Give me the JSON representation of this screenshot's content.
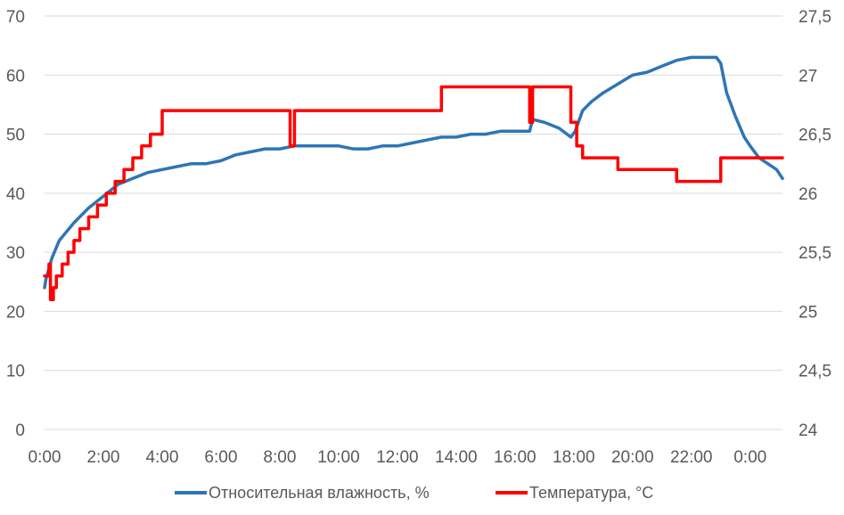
{
  "chart_data": {
    "type": "line",
    "title": "",
    "xlabel": "",
    "ylabel": "",
    "y2label": "",
    "grid": true,
    "legend_position": "bottom",
    "x_ticks": [
      "0:00",
      "2:00",
      "4:00",
      "6:00",
      "8:00",
      "10:00",
      "12:00",
      "14:00",
      "16:00",
      "18:00",
      "20:00",
      "22:00",
      "0:00"
    ],
    "ylim": [
      0,
      70
    ],
    "y_ticks": [
      "0",
      "10",
      "20",
      "30",
      "40",
      "50",
      "60",
      "70"
    ],
    "y2lim": [
      24,
      27.5
    ],
    "y2_ticks": [
      "24",
      "24,5",
      "25",
      "25,5",
      "26",
      "26,5",
      "27",
      "27,5"
    ],
    "series": [
      {
        "name": "Относительная влажность, %",
        "axis": "left",
        "color": "#2e75b6",
        "x_hours": [
          0,
          0.05,
          0.25,
          0.5,
          1,
          1.5,
          2,
          2.5,
          3,
          3.5,
          4,
          4.5,
          5,
          5.5,
          6,
          6.5,
          7,
          7.5,
          8,
          8.5,
          9,
          9.5,
          10,
          10.5,
          11,
          11.5,
          12,
          12.5,
          13,
          13.5,
          14,
          14.5,
          15,
          15.5,
          16,
          16.5,
          16.6,
          17,
          17.5,
          17.9,
          18.05,
          18.3,
          18.6,
          19,
          19.5,
          20,
          20.5,
          21,
          21.5,
          22,
          22.5,
          22.85,
          23.0,
          23.2,
          23.5,
          23.8,
          24.0,
          24.3,
          24.6,
          24.9,
          25.1
        ],
        "values": [
          24,
          25.5,
          29,
          32,
          35,
          37.5,
          39.5,
          41.5,
          42.5,
          43.5,
          44,
          44.5,
          45,
          45,
          45.5,
          46.5,
          47,
          47.5,
          47.5,
          48,
          48,
          48,
          48,
          47.5,
          47.5,
          48,
          48,
          48.5,
          49,
          49.5,
          49.5,
          50,
          50,
          50.5,
          50.5,
          50.5,
          52.5,
          52,
          51,
          49.5,
          50.5,
          54,
          55.5,
          57,
          58.5,
          60,
          60.5,
          61.5,
          62.5,
          63,
          63,
          63,
          62,
          57,
          53,
          49.5,
          48,
          46,
          45,
          44,
          42.5
        ]
      },
      {
        "name": "Температура, °С",
        "axis": "right",
        "color": "#ff0000",
        "x_hours": [
          0,
          0.15,
          0.2,
          0.3,
          0.4,
          0.6,
          0.8,
          1.0,
          1.2,
          1.5,
          1.8,
          2.1,
          2.4,
          2.7,
          3.0,
          3.3,
          3.6,
          4.0,
          5.0,
          6.0,
          7.0,
          8.0,
          8.2,
          8.35,
          8.5,
          8.6,
          9.0,
          10.0,
          11.0,
          12.0,
          13.0,
          13.5,
          14.0,
          15.0,
          16.0,
          16.35,
          16.5,
          16.6,
          17.0,
          17.5,
          17.9,
          18.1,
          18.3,
          18.5,
          19.0,
          19.5,
          20.0,
          20.5,
          21.0,
          21.5,
          22.0,
          22.5,
          22.8,
          23.0,
          23.5,
          24.0,
          24.3,
          24.6,
          24.9,
          25.1
        ],
        "values": [
          25.3,
          25.4,
          25.1,
          25.2,
          25.3,
          25.4,
          25.5,
          25.6,
          25.7,
          25.8,
          25.9,
          26.0,
          26.1,
          26.2,
          26.3,
          26.4,
          26.5,
          26.7,
          26.7,
          26.7,
          26.7,
          26.7,
          26.7,
          26.4,
          26.7,
          26.7,
          26.7,
          26.7,
          26.7,
          26.7,
          26.7,
          26.9,
          26.9,
          26.9,
          26.9,
          26.9,
          26.6,
          26.9,
          26.9,
          26.9,
          26.6,
          26.4,
          26.3,
          26.3,
          26.3,
          26.2,
          26.2,
          26.2,
          26.2,
          26.1,
          26.1,
          26.1,
          26.1,
          26.3,
          26.3,
          26.3,
          26.3,
          26.3,
          26.3,
          26.3
        ]
      }
    ]
  }
}
